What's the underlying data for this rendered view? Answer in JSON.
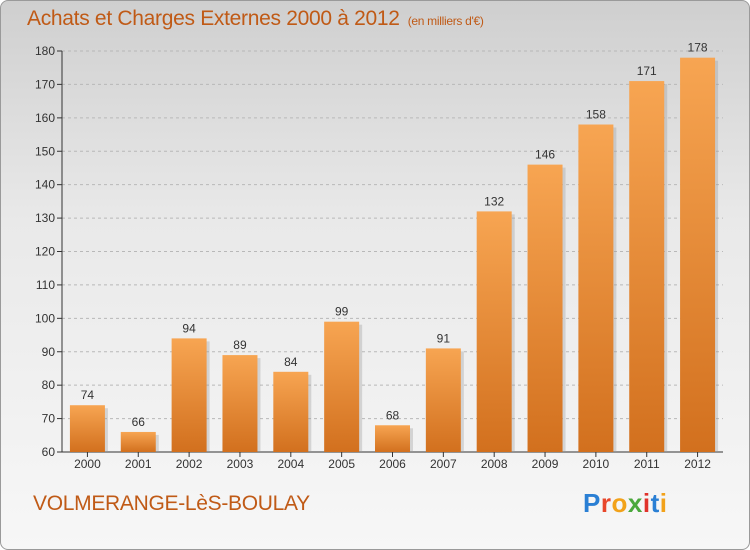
{
  "title": "Achats et Charges Externes 2000 à 2012",
  "unit_note": "(en milliers d'€)",
  "location": "VOLMERANGE-LèS-BOULAY",
  "brand": {
    "letters": [
      "P",
      "r",
      "o",
      "x",
      "i",
      "t",
      "i"
    ],
    "colors": [
      "#2a7fd4",
      "#e8462a",
      "#f2a21a",
      "#4aa83c",
      "#e0322b",
      "#2a7fd4",
      "#f2a21a"
    ]
  },
  "colors": {
    "bar_top": "#f7a552",
    "bar_bottom": "#d2701e",
    "axis": "#333333",
    "grid": "#b8b8b8",
    "title": "#c05a16"
  },
  "chart_data": {
    "type": "bar",
    "title": "Achats et Charges Externes 2000 à 2012",
    "subtitle": "(en milliers d'€)",
    "xlabel": "",
    "ylabel": "",
    "categories": [
      "2000",
      "2001",
      "2002",
      "2003",
      "2004",
      "2005",
      "2006",
      "2007",
      "2008",
      "2009",
      "2010",
      "2011",
      "2012"
    ],
    "values": [
      74,
      66,
      94,
      89,
      84,
      99,
      68,
      91,
      132,
      146,
      158,
      171,
      178
    ],
    "ylim": [
      60,
      180
    ],
    "yticks": [
      60,
      70,
      80,
      90,
      100,
      110,
      120,
      130,
      140,
      150,
      160,
      170,
      180
    ],
    "grid": true,
    "data_labels": true
  }
}
